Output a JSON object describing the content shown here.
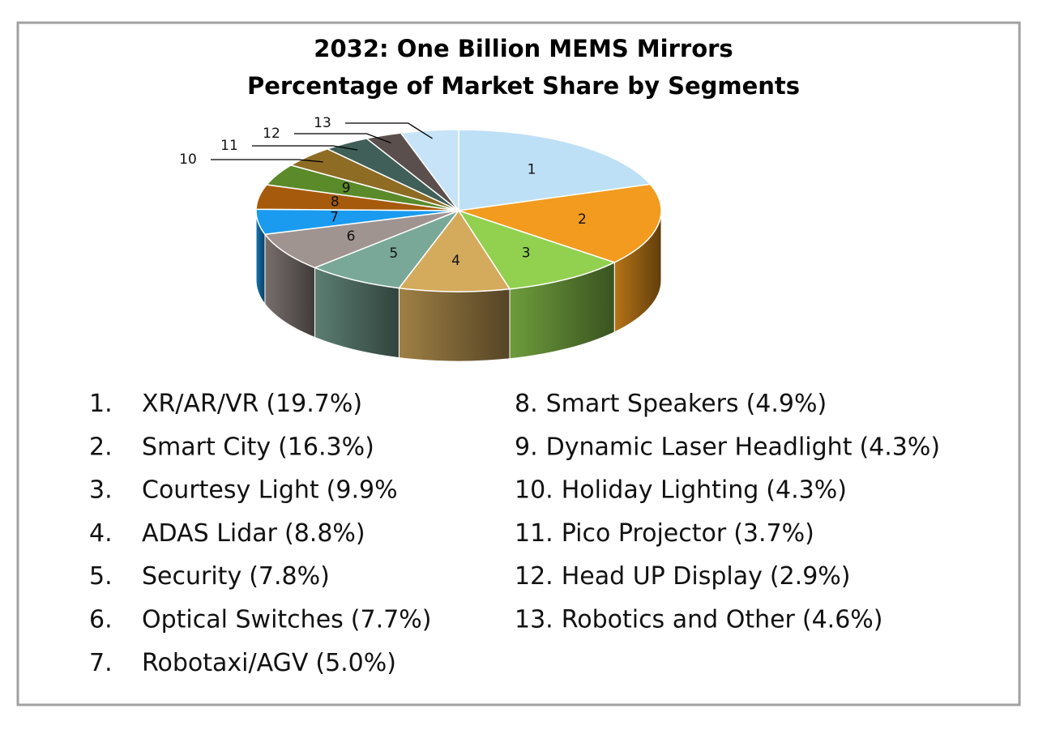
{
  "chart_data": {
    "type": "pie",
    "title": [
      "2032: One Billion MEMS Mirrors",
      "Percentage of Market Share by Segments"
    ],
    "categories": [
      "XR/AR/VR",
      "Smart City",
      "Courtesy Light",
      "ADAS Lidar",
      "Security",
      "Optical Switches",
      "Robotaxi/AGV",
      "Smart Speakers",
      "Dynamic Laser Headlight",
      "Holiday Lighting",
      "Pico Projector",
      "Head UP Display",
      "Robotics and Other"
    ],
    "values": [
      19.7,
      16.3,
      9.9,
      8.8,
      7.8,
      7.7,
      5.0,
      4.9,
      4.3,
      4.3,
      3.7,
      2.9,
      4.6
    ],
    "value_labels": [
      "(19.7%)",
      "(16.3%)",
      "(9.9%",
      "(8.8%)",
      "(7.8%)",
      "(7.7%)",
      "(5.0%)",
      "(4.9%)",
      "(4.3%)",
      "(4.3%)",
      "(3.7%)",
      "(2.9%)",
      "(4.6%)"
    ],
    "legend_numbers": [
      "1.",
      "2.",
      "3.",
      "4.",
      "5.",
      "6.",
      "7.",
      "8.",
      "9.",
      "10.",
      "11.",
      "12.",
      "13."
    ],
    "slice_labels": [
      "1",
      "2",
      "3",
      "4",
      "5",
      "6",
      "7",
      "8",
      "9",
      "10",
      "11",
      "12",
      "13"
    ],
    "colors": [
      "#bde0f7",
      "#f29b1e",
      "#92d050",
      "#d4aa5c",
      "#7aa898",
      "#a09490",
      "#1a9bf0",
      "#a65b0c",
      "#5b8a2a",
      "#8e6c24",
      "#405f58",
      "#5a4f4d",
      "#c7e3f7"
    ]
  }
}
